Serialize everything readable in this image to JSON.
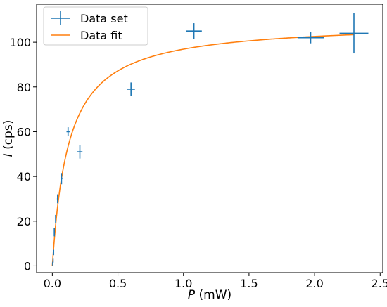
{
  "chart_data": {
    "type": "scatter",
    "title": "",
    "xlabel_var": "P",
    "xlabel_unit": " (mW)",
    "ylabel_var": "I",
    "ylabel_unit": " (cps)",
    "xlim": [
      -0.12,
      2.52
    ],
    "ylim": [
      -3,
      117
    ],
    "xticks": [
      0.0,
      0.5,
      1.0,
      1.5,
      2.0,
      2.5
    ],
    "xtick_labels": [
      "0.0",
      "0.5",
      "1.0",
      "1.5",
      "2.0",
      "2.5"
    ],
    "yticks": [
      0,
      20,
      40,
      60,
      80,
      100
    ],
    "ytick_labels": [
      "0",
      "20",
      "40",
      "60",
      "80",
      "100"
    ],
    "grid": false,
    "legend_position": "top-left",
    "series": [
      {
        "name": "Data set",
        "kind": "errorbar",
        "color": "#1f77b4",
        "points": [
          {
            "x": 0.003,
            "y": 1,
            "xerr": 0.0,
            "yerr": 0.8
          },
          {
            "x": 0.006,
            "y": 2.5,
            "xerr": 0.0,
            "yerr": 1.0
          },
          {
            "x": 0.01,
            "y": 6,
            "xerr": 0.001,
            "yerr": 1.2
          },
          {
            "x": 0.015,
            "y": 15,
            "xerr": 0.002,
            "yerr": 1.8
          },
          {
            "x": 0.025,
            "y": 21,
            "xerr": 0.003,
            "yerr": 1.8
          },
          {
            "x": 0.04,
            "y": 30,
            "xerr": 0.005,
            "yerr": 2.0
          },
          {
            "x": 0.07,
            "y": 39,
            "xerr": 0.007,
            "yerr": 2.5
          },
          {
            "x": 0.12,
            "y": 60,
            "xerr": 0.012,
            "yerr": 2.0
          },
          {
            "x": 0.21,
            "y": 51,
            "xerr": 0.02,
            "yerr": 3.0
          },
          {
            "x": 0.6,
            "y": 79,
            "xerr": 0.03,
            "yerr": 3.0
          },
          {
            "x": 1.08,
            "y": 105,
            "xerr": 0.06,
            "yerr": 3.5
          },
          {
            "x": 1.97,
            "y": 102,
            "xerr": 0.1,
            "yerr": 2.5
          },
          {
            "x": 2.3,
            "y": 104,
            "xerr": 0.11,
            "yerr": 9.0
          }
        ]
      },
      {
        "name": "Data fit",
        "kind": "line",
        "color": "#ff7f0e",
        "model": "saturation",
        "Imax": 109,
        "Psat": 0.125,
        "x_range": [
          0.0,
          2.3
        ]
      }
    ]
  }
}
